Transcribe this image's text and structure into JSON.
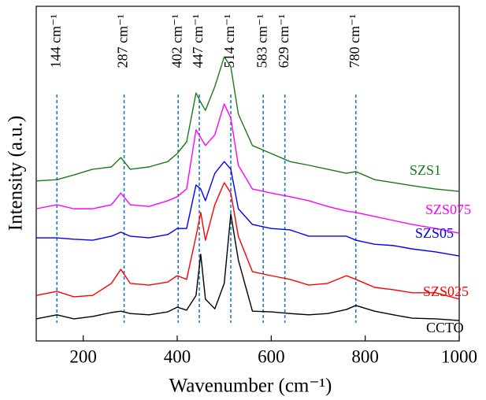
{
  "chart_data": {
    "type": "line",
    "x_label": "Wavenumber (cm⁻¹)",
    "y_label": "Intensity (a.u.)",
    "xlim": [
      100,
      1000
    ],
    "ylim": [
      0,
      100
    ],
    "xticks": [
      200,
      400,
      600,
      800,
      1000
    ],
    "peaks": [
      {
        "value": 144,
        "label": "144 cm⁻¹"
      },
      {
        "value": 287,
        "label": "287 cm⁻¹"
      },
      {
        "value": 402,
        "label": "402 cm⁻¹"
      },
      {
        "value": 447,
        "label": "447 cm⁻¹"
      },
      {
        "value": 514,
        "label": "514 cm⁻¹"
      },
      {
        "value": 583,
        "label": "583 cm⁻¹"
      },
      {
        "value": 629,
        "label": "629 cm⁻¹"
      },
      {
        "value": 780,
        "label": "780 cm⁻¹"
      }
    ],
    "x": [
      100,
      144,
      180,
      220,
      260,
      280,
      300,
      340,
      380,
      400,
      420,
      440,
      450,
      460,
      480,
      500,
      514,
      530,
      560,
      600,
      640,
      680,
      720,
      760,
      780,
      820,
      860,
      900,
      950,
      1000
    ],
    "series": [
      {
        "name": "SZS1",
        "color": "#1a7a1a",
        "values": [
          47.8,
          48.2,
          49.6,
          51.3,
          52,
          54.8,
          51.3,
          52,
          53.6,
          56,
          59.5,
          74.1,
          71.3,
          68.9,
          76,
          84.9,
          81.9,
          67.8,
          58.4,
          56,
          53.6,
          52.5,
          51.3,
          50.1,
          50.6,
          48.2,
          47.3,
          46.4,
          45.4,
          44.7
        ]
      },
      {
        "name": "SZS075",
        "color": "#ff00ff",
        "values": [
          39.5,
          40.7,
          39.5,
          39.5,
          40.7,
          44.2,
          40.7,
          40.2,
          41.9,
          43.1,
          45.4,
          63.1,
          60.7,
          58.4,
          61.6,
          70.8,
          66.6,
          52.5,
          45.4,
          44.2,
          43.1,
          41.9,
          40.2,
          38.8,
          38.4,
          37.2,
          36,
          34.8,
          33.6,
          32.2
        ]
      },
      {
        "name": "SZS05",
        "color": "#0000ff",
        "values": [
          30.8,
          30.8,
          30.4,
          30.1,
          31.3,
          32.5,
          31.3,
          30.8,
          31.8,
          33.6,
          33.6,
          46.6,
          45.4,
          41.9,
          50.1,
          53.6,
          51.3,
          39.5,
          34.8,
          33.6,
          33.2,
          31.3,
          31.3,
          31.3,
          30.1,
          28.9,
          28.5,
          27.5,
          26.6,
          25.4
        ]
      },
      {
        "name": "SZS025",
        "color": "#ff0000",
        "values": [
          13.6,
          14.8,
          13.2,
          13.6,
          17.2,
          21.4,
          17.2,
          16.7,
          17.6,
          19.5,
          18.4,
          31.3,
          38.4,
          30.1,
          40.7,
          47.3,
          44.2,
          31.3,
          20.7,
          19.5,
          18.4,
          16.7,
          17.2,
          19.5,
          18.4,
          16,
          15.3,
          14.4,
          14.4,
          12.5
        ]
      },
      {
        "name": "CCTO",
        "color": "#000000",
        "values": [
          6.6,
          7.8,
          6.6,
          7.3,
          8.5,
          8.9,
          8.2,
          7.8,
          8.7,
          10.1,
          9.2,
          13.6,
          25.9,
          12.5,
          9.6,
          17.2,
          37.9,
          24.2,
          8.9,
          8.7,
          8.2,
          7.8,
          8.2,
          9.4,
          10.6,
          8.9,
          7.8,
          6.8,
          6.6,
          6.1
        ]
      }
    ]
  }
}
